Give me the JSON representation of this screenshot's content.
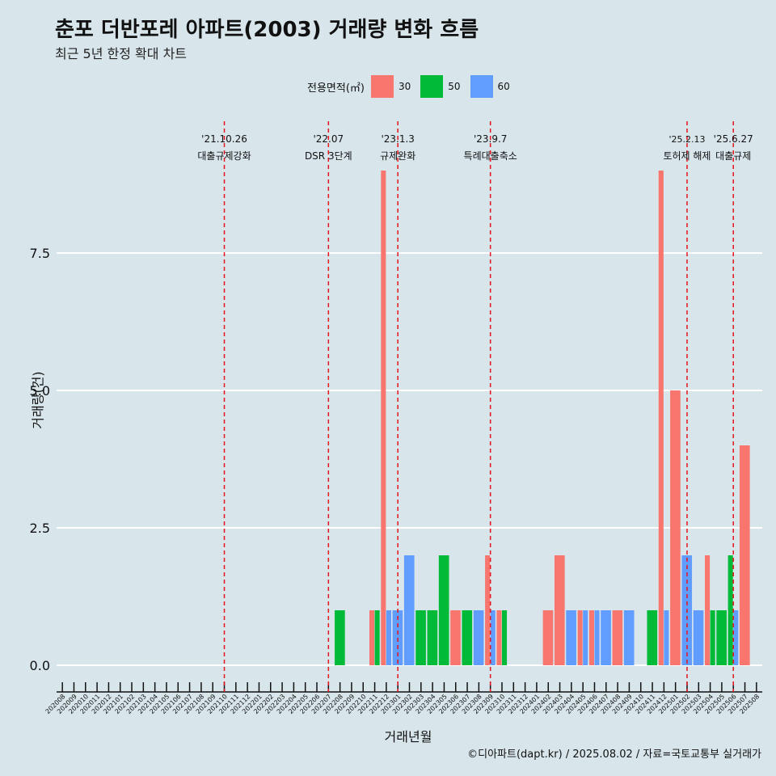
{
  "page": {
    "title": "춘포 더반포레 아파트(2003) 거래량 변화 흐름",
    "subtitle": "최근 5년 한정 확대 차트",
    "caption": "©디아파트(dapt.kr) / 2025.08.02 / 자료=국토교통부 실거래가"
  },
  "legend": {
    "title": "전용면적(㎡)",
    "items": [
      {
        "label": "30",
        "color": "#f8766d"
      },
      {
        "label": "50",
        "color": "#00ba38"
      },
      {
        "label": "60",
        "color": "#619cff"
      }
    ]
  },
  "chart_data": {
    "type": "bar",
    "title": "춘포 더반포레 아파트(2003) 거래량 변화 흐름",
    "subtitle": "최근 5년 한정 확대 차트",
    "xlabel": "거래년월",
    "ylabel": "거래량(건)",
    "ylim": [
      -0.45,
      10
    ],
    "yticks": [
      0.0,
      2.5,
      5.0,
      7.5
    ],
    "ytick_labels": [
      "0.0",
      "2.5",
      "5.0",
      "7.5"
    ],
    "grid": "horizontal major",
    "legend_position": "top",
    "categories": [
      "202008",
      "202009",
      "202010",
      "202011",
      "202012",
      "202101",
      "202102",
      "202103",
      "202104",
      "202105",
      "202106",
      "202107",
      "202108",
      "202109",
      "202110",
      "202111",
      "202112",
      "202201",
      "202202",
      "202203",
      "202204",
      "202205",
      "202206",
      "202207",
      "202208",
      "202209",
      "202210",
      "202211",
      "202212",
      "202301",
      "202302",
      "202303",
      "202304",
      "202305",
      "202306",
      "202307",
      "202308",
      "202309",
      "202310",
      "202311",
      "202312",
      "202401",
      "202402",
      "202403",
      "202404",
      "202405",
      "202406",
      "202407",
      "202408",
      "202409",
      "202410",
      "202411",
      "202412",
      "202501",
      "202502",
      "202503",
      "202504",
      "202505",
      "202506",
      "202507",
      "202508"
    ],
    "series": [
      {
        "name": "30",
        "color": "#f8766d",
        "values": [
          0,
          0,
          0,
          0,
          0,
          0,
          0,
          0,
          0,
          0,
          0,
          0,
          0,
          0,
          0,
          0,
          0,
          0,
          0,
          0,
          0,
          0,
          0,
          0,
          0,
          0,
          0,
          1,
          9,
          0,
          0,
          0,
          0,
          0,
          1,
          0,
          0,
          2,
          1,
          0,
          0,
          0,
          1,
          2,
          0,
          1,
          1,
          0,
          1,
          0,
          0,
          0,
          9,
          5,
          0,
          0,
          2,
          0,
          0,
          4,
          0
        ]
      },
      {
        "name": "50",
        "color": "#00ba38",
        "values": [
          0,
          0,
          0,
          0,
          0,
          0,
          0,
          0,
          0,
          0,
          0,
          0,
          0,
          0,
          0,
          0,
          0,
          0,
          0,
          0,
          0,
          0,
          0,
          0,
          1,
          0,
          0,
          1,
          0,
          0,
          0,
          1,
          1,
          2,
          0,
          1,
          0,
          0,
          1,
          0,
          0,
          0,
          0,
          0,
          0,
          0,
          0,
          0,
          0,
          0,
          0,
          1,
          0,
          0,
          0,
          0,
          1,
          1,
          2,
          0,
          0
        ]
      },
      {
        "name": "60",
        "color": "#619cff",
        "values": [
          0,
          0,
          0,
          0,
          0,
          0,
          0,
          0,
          0,
          0,
          0,
          0,
          0,
          0,
          0,
          0,
          0,
          0,
          0,
          0,
          0,
          0,
          0,
          0,
          0,
          0,
          0,
          0,
          1,
          1,
          2,
          0,
          0,
          0,
          0,
          0,
          1,
          1,
          0,
          0,
          0,
          0,
          0,
          0,
          1,
          1,
          1,
          1,
          0,
          1,
          0,
          0,
          1,
          0,
          2,
          1,
          0,
          0,
          1,
          0,
          0
        ]
      }
    ],
    "events": [
      {
        "date": "'21.10.26",
        "label": "대출규제강화",
        "category": "202110",
        "offset": 0
      },
      {
        "date": "'22.07",
        "label": "DSR 3단계",
        "category": "202207",
        "offset": 0
      },
      {
        "date": "'23.1.3",
        "label": "규제완화",
        "category": "202301",
        "offset": 0
      },
      {
        "date": "'23.9.7",
        "label": "특례대출축소",
        "category": "202309",
        "offset": 0
      },
      {
        "date": "'25.2.13",
        "label": "토허제 해제",
        "category": "202502",
        "offset": 0
      },
      {
        "date": "'25.6.27",
        "label": "대출규제",
        "category": "202506",
        "offset": 0
      }
    ]
  }
}
